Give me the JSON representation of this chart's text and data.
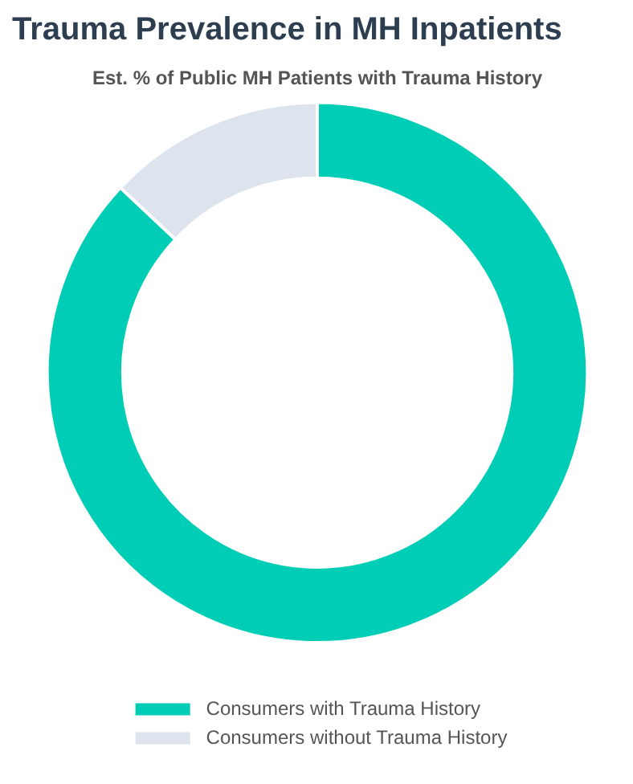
{
  "chart_data": {
    "type": "donut",
    "title": "Trauma Prevalence in MH Inpatients",
    "subtitle": "Est. % of Public MH Patients with Trauma History",
    "categories": [
      "Consumers with Trauma History",
      "Consumers without Trauma History"
    ],
    "values": [
      87,
      13
    ],
    "colors": [
      "#00cdb5",
      "#dde4ee"
    ],
    "legend": "bottom"
  }
}
